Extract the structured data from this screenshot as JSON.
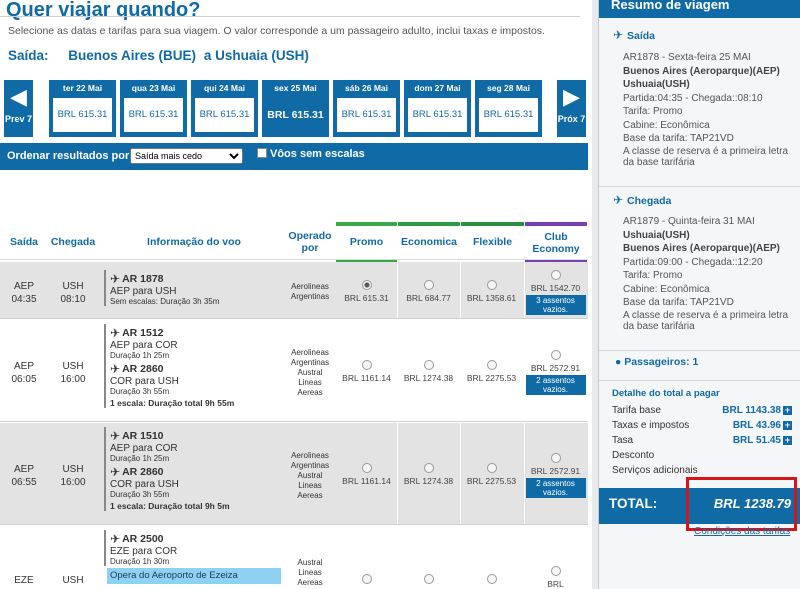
{
  "page": {
    "title": "Quer viajar quando?",
    "subtitle": "Selecione as datas e tarifas para sua viagem. O valor corresponde a um passageiro adulto, inclui taxas e impostos.",
    "route_label": "Saída:",
    "route_from": "Buenos Aires (BUE)",
    "route_to": "a Ushuaia (USH)"
  },
  "datestrip": {
    "prev": "Prev 7",
    "next": "Próx 7",
    "days": [
      {
        "label": "ter 22 Mai",
        "price": "BRL 615.31"
      },
      {
        "label": "qua 23 Mai",
        "price": "BRL 615.31"
      },
      {
        "label": "qui 24 Mai",
        "price": "BRL 615.31"
      },
      {
        "label": "sex 25 Mai",
        "price": "BRL 615.31"
      },
      {
        "label": "sáb 26 Mai",
        "price": "BRL 615.31"
      },
      {
        "label": "dom 27 Mai",
        "price": "BRL 615.31"
      },
      {
        "label": "seg 28 Mai",
        "price": "BRL 615.31"
      }
    ]
  },
  "sort": {
    "label": "Ordenar resultados por:",
    "selected": "Saída mais cedo",
    "nonstop_label": "Vôos sem escalas"
  },
  "table": {
    "headers": {
      "saida": "Saída",
      "chegada": "Chegada",
      "info": "Informação do voo",
      "operado": "Operado por",
      "promo": "Promo",
      "economica": "Economica",
      "flexible": "Flexible",
      "club": "Club Economy"
    },
    "rows": [
      {
        "dep": "AEP",
        "dep_time": "04:35",
        "arr": "USH",
        "arr_time": "08:10",
        "seg1_flight": "AR 1878",
        "seg1_route": "AEP para USH",
        "seg1_note": "Sem escalas: Duração 3h 35m",
        "operators": "Aerolineas Argentinas",
        "promo": "BRL 615.31",
        "economica": "BRL 684.77",
        "flexible": "BRL 1358.61",
        "club": "BRL 1542.70",
        "club_seats": "3 assentos vazios."
      },
      {
        "dep": "AEP",
        "dep_time": "06:05",
        "arr": "USH",
        "arr_time": "16:00",
        "seg1_flight": "AR 1512",
        "seg1_route": "AEP para COR",
        "seg1_dur": "Duração 1h 25m",
        "seg2_flight": "AR 2860",
        "seg2_route": "COR para USH",
        "seg2_dur": "Duração 3h 55m",
        "stops": "1 escala: Duração total 9h 55m",
        "operators": "Aerolineas Argentinas",
        "operators2": "Austral Lineas Aereas",
        "promo": "BRL 1161.14",
        "economica": "BRL 1274.38",
        "flexible": "BRL 2275.53",
        "club": "BRL 2572.91",
        "club_seats": "2 assentos vazios."
      },
      {
        "dep": "AEP",
        "dep_time": "06:55",
        "arr": "USH",
        "arr_time": "16:00",
        "seg1_flight": "AR 1510",
        "seg1_route": "AEP para COR",
        "seg1_dur": "Duração 1h 25m",
        "seg2_flight": "AR 2860",
        "seg2_route": "COR para USH",
        "seg2_dur": "Duração 3h 55m",
        "stops": "1 escala: Duração total 9h 5m",
        "operators": "Aerolineas Argentinas",
        "operators2": "Austral Lineas Aereas",
        "promo": "BRL 1161.14",
        "economica": "BRL 1274.38",
        "flexible": "BRL 2275.53",
        "club": "BRL 2572.91",
        "club_seats": "2 assentos vazios."
      },
      {
        "dep": "EZE",
        "arr": "USH",
        "seg1_flight": "AR 2500",
        "seg1_route": "EZE para COR",
        "seg1_dur": "Duração 1h 30m",
        "banner": "Opera do Aeroporto de Ezeiza",
        "operators": "Austral Lineas Aereas",
        "club": "BRL"
      }
    ]
  },
  "summary": {
    "title": "Resumo de viagem",
    "outbound": {
      "title": "Saída",
      "flight": "AR1878 - Sexta-feira 25 MAI",
      "from": "Buenos Aires (Aeroparque)(AEP)",
      "to": "Ushuaia(USH)",
      "times": "Partida:04:35 - Chegada::08:10",
      "fare": "Tarifa: Promo",
      "cabin": "Cabine: Econômica",
      "basis": "Base da tarifa: TAP21VD",
      "note": "A classe de reserva é a primeira letra da base tarifária"
    },
    "inbound": {
      "title": "Chegada",
      "flight": "AR1879 - Quinta-feira 31 MAI",
      "from": "Ushuaia(USH)",
      "to": "Buenos Aires (Aeroparque)(AEP)",
      "times": "Partida:09:00 - Chegada::12:20",
      "fare": "Tarifa: Promo",
      "cabin": "Cabine: Econômica",
      "basis": "Base da tarifa: TAP21VD",
      "note": "A classe de reserva é a primeira letra da base tarifária"
    },
    "passengers": "Passageiros: 1",
    "details_title": "Detalhe do total a pagar",
    "details": [
      {
        "label": "Tarifa base",
        "value": "BRL 1143.38"
      },
      {
        "label": "Taxas e impostos",
        "value": "BRL 43.96"
      },
      {
        "label": "Tasa",
        "value": "BRL 51.45"
      },
      {
        "label": "Desconto",
        "value": ""
      },
      {
        "label": "Serviços adicionais",
        "value": ""
      }
    ],
    "total_label": "TOTAL:",
    "total_value": "BRL 1238.79",
    "conditions": "Condições das tarifas"
  },
  "colors": {
    "brand_blue": "#0f6aa6",
    "promo_bar": "#3aa84a",
    "economica_bar": "#2e9a44",
    "flexible_bar": "#2a8f3e",
    "club_bar": "#7b3fb0",
    "highlight_red": "#d6151b"
  }
}
